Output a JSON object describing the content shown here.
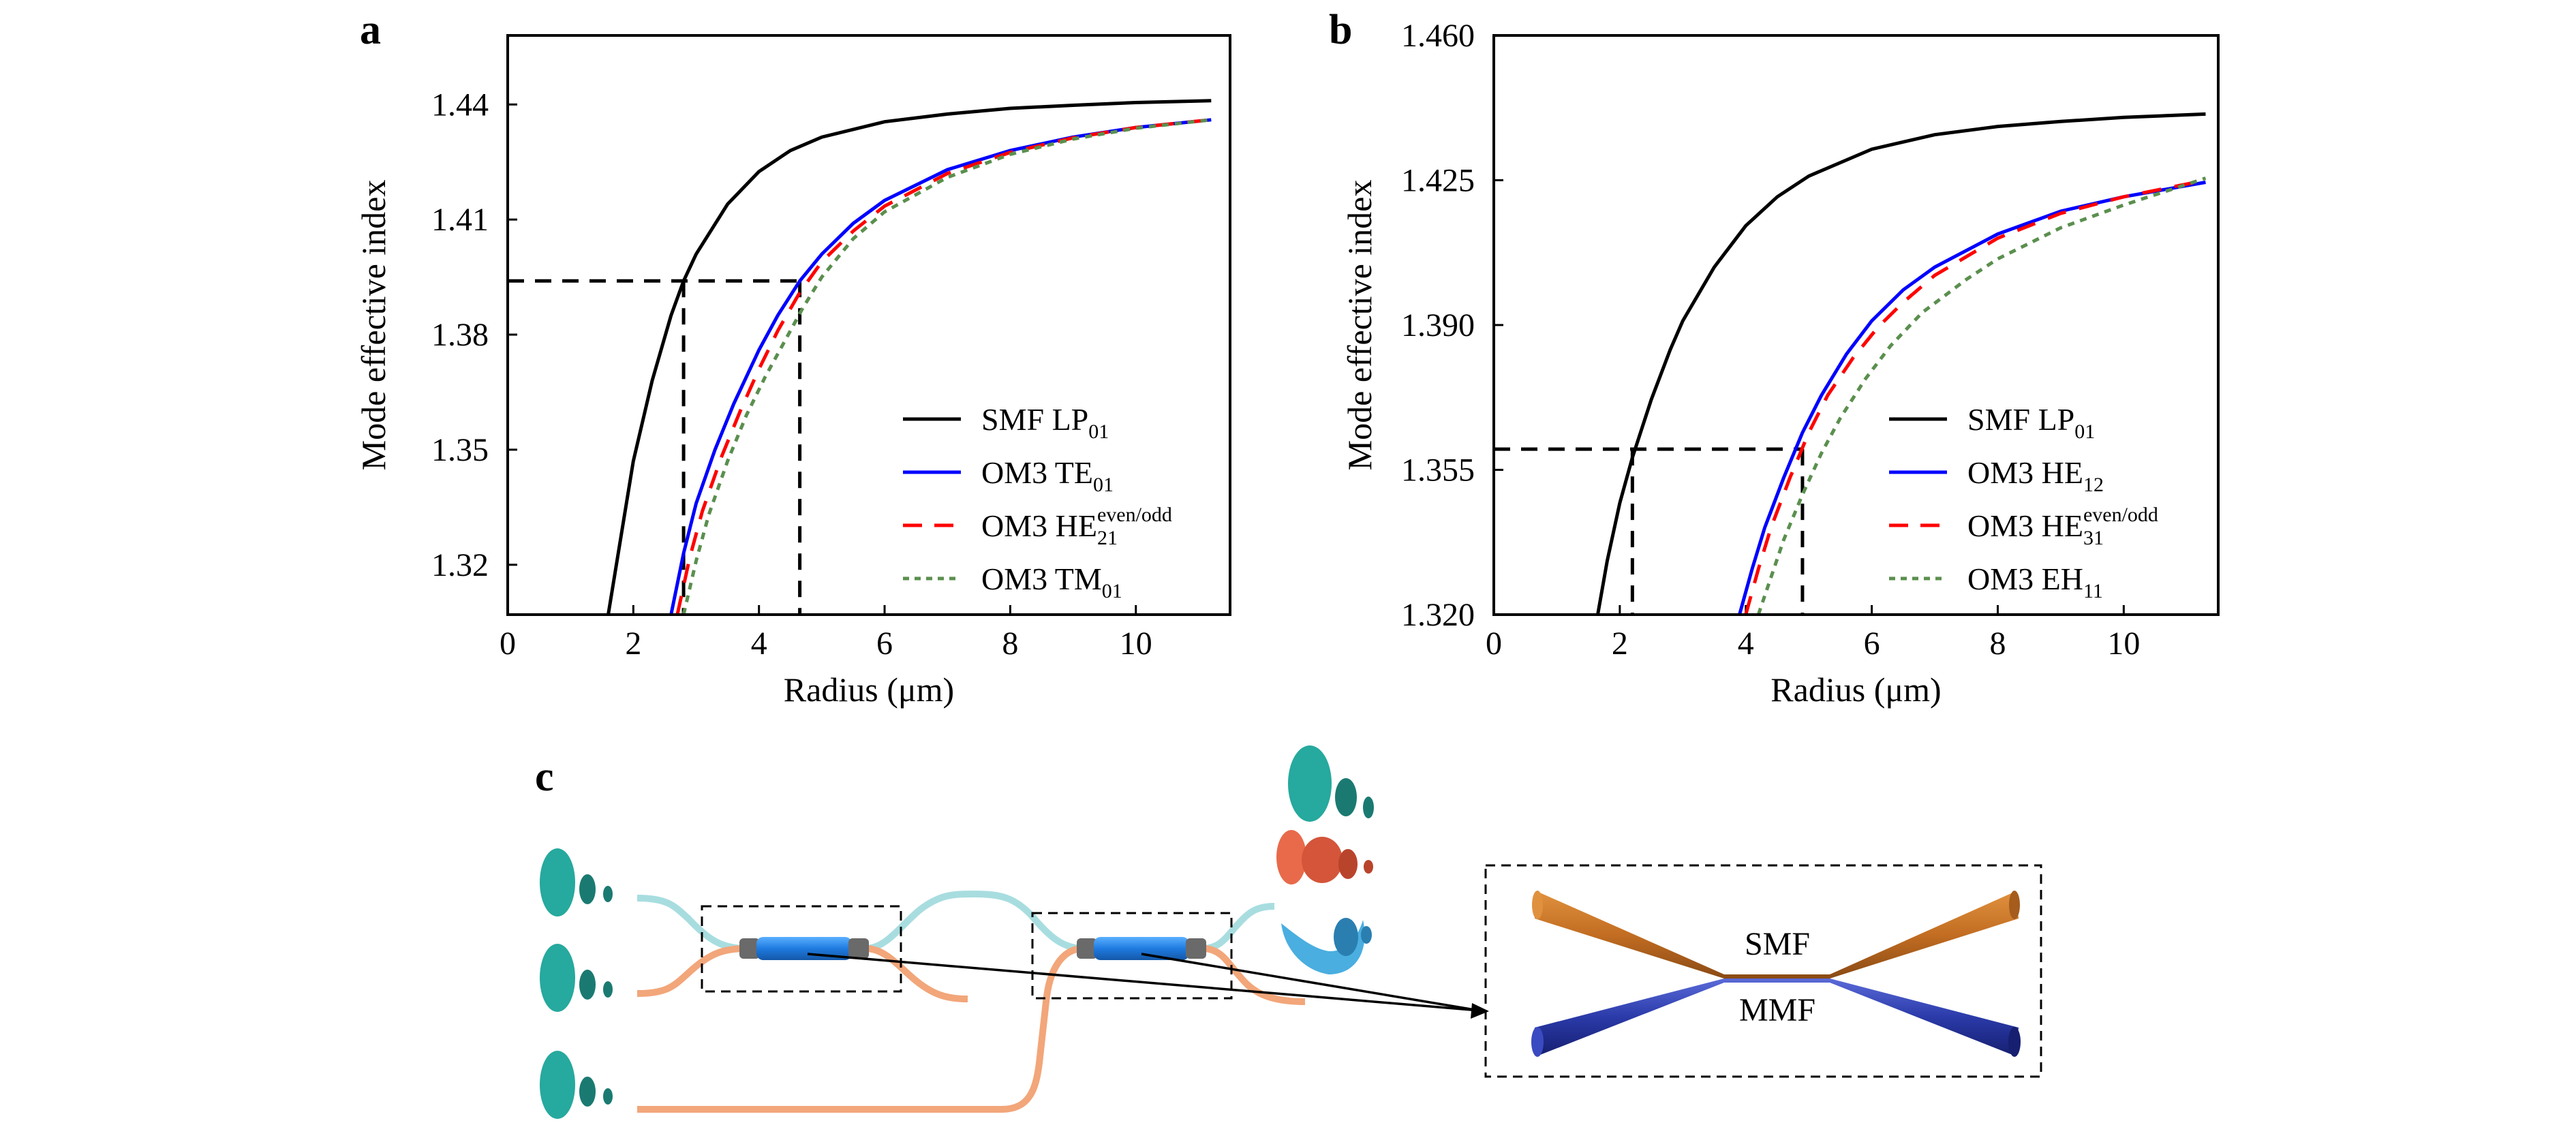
{
  "panels": {
    "a": {
      "letter": "a"
    },
    "b": {
      "letter": "b"
    },
    "c": {
      "letter": "c"
    }
  },
  "chart_data": [
    {
      "type": "line",
      "panel": "a",
      "xlabel": "Radius (μm)",
      "ylabel": "Mode effective index",
      "xlim": [
        0,
        11.5
      ],
      "ylim": [
        1.307,
        1.458
      ],
      "xticks": [
        0,
        2,
        4,
        6,
        8,
        10
      ],
      "xtick_labels": [
        "0",
        "2",
        "4",
        "6",
        "8",
        "10"
      ],
      "yticks": [
        1.32,
        1.35,
        1.38,
        1.41,
        1.44
      ],
      "ytick_labels": [
        "1.32",
        "1.35",
        "1.38",
        "1.41",
        "1.44"
      ],
      "legend_position": "bottom-right",
      "grid": false,
      "series": [
        {
          "legend_main": "SMF LP",
          "legend_sub": "01",
          "legend_sup": "",
          "color": "#000000",
          "dash": "solid",
          "x": [
            1.6,
            1.8,
            2.0,
            2.3,
            2.6,
            2.8,
            3.0,
            3.5,
            4.0,
            4.5,
            5.0,
            6.0,
            7.0,
            8.0,
            9.0,
            10.0,
            11.2
          ],
          "y": [
            1.307,
            1.327,
            1.347,
            1.368,
            1.385,
            1.394,
            1.401,
            1.414,
            1.4225,
            1.428,
            1.4315,
            1.4355,
            1.4375,
            1.439,
            1.4398,
            1.4405,
            1.441
          ]
        },
        {
          "legend_main": "OM3 TE",
          "legend_sub": "01",
          "legend_sup": "",
          "color": "#0000ff",
          "dash": "solid",
          "x": [
            2.6,
            2.8,
            3.0,
            3.3,
            3.6,
            4.0,
            4.3,
            4.65,
            5.0,
            5.5,
            6.0,
            7.0,
            8.0,
            9.0,
            10.0,
            11.2
          ],
          "y": [
            1.307,
            1.323,
            1.336,
            1.35,
            1.362,
            1.376,
            1.385,
            1.394,
            1.401,
            1.409,
            1.415,
            1.423,
            1.428,
            1.4315,
            1.434,
            1.436
          ]
        },
        {
          "legend_main": "OM3 HE",
          "legend_sub": "21",
          "legend_sup": "even/odd",
          "color": "#ff0000",
          "dash": "28 20",
          "x": [
            2.7,
            2.9,
            3.1,
            3.4,
            3.7,
            4.0,
            4.3,
            4.65,
            5.0,
            5.5,
            6.0,
            7.0,
            8.0,
            9.0,
            10.0,
            11.2
          ],
          "y": [
            1.307,
            1.322,
            1.334,
            1.348,
            1.36,
            1.371,
            1.381,
            1.391,
            1.399,
            1.407,
            1.4135,
            1.422,
            1.4275,
            1.4313,
            1.434,
            1.436
          ]
        },
        {
          "legend_main": "OM3 TM",
          "legend_sub": "01",
          "legend_sup": "",
          "color": "#5a8f4e",
          "dash": "10 9",
          "x": [
            2.8,
            3.0,
            3.2,
            3.5,
            3.8,
            4.1,
            4.4,
            4.7,
            5.0,
            5.5,
            6.0,
            7.0,
            8.0,
            9.0,
            10.0,
            11.2
          ],
          "y": [
            1.307,
            1.321,
            1.333,
            1.347,
            1.359,
            1.369,
            1.378,
            1.387,
            1.395,
            1.405,
            1.412,
            1.421,
            1.427,
            1.431,
            1.4338,
            1.436
          ]
        }
      ],
      "guides": {
        "y": 1.394,
        "x": [
          2.8,
          4.65
        ]
      }
    },
    {
      "type": "line",
      "panel": "b",
      "xlabel": "Radius (μm)",
      "ylabel": "Mode effective index",
      "xlim": [
        0,
        11.5
      ],
      "ylim": [
        1.32,
        1.46
      ],
      "xticks": [
        0,
        2,
        4,
        6,
        8,
        10
      ],
      "xtick_labels": [
        "0",
        "2",
        "4",
        "6",
        "8",
        "10"
      ],
      "yticks": [
        1.32,
        1.355,
        1.39,
        1.425,
        1.46
      ],
      "ytick_labels": [
        "1.320",
        "1.355",
        "1.390",
        "1.425",
        "1.460"
      ],
      "legend_position": "bottom-right",
      "grid": false,
      "series": [
        {
          "legend_main": "SMF LP",
          "legend_sub": "01",
          "legend_sup": "",
          "color": "#000000",
          "dash": "solid",
          "x": [
            1.65,
            1.8,
            2.0,
            2.2,
            2.5,
            2.8,
            3.0,
            3.5,
            4.0,
            4.5,
            5.0,
            6.0,
            7.0,
            8.0,
            9.0,
            10.0,
            11.3
          ],
          "y": [
            1.32,
            1.333,
            1.347,
            1.358,
            1.372,
            1.384,
            1.391,
            1.404,
            1.414,
            1.421,
            1.426,
            1.4325,
            1.436,
            1.438,
            1.4392,
            1.4402,
            1.441
          ]
        },
        {
          "legend_main": "OM3 HE",
          "legend_sub": "12",
          "legend_sup": "",
          "color": "#0000ff",
          "dash": "solid",
          "x": [
            3.9,
            4.1,
            4.3,
            4.6,
            4.9,
            5.2,
            5.6,
            6.0,
            6.5,
            7.0,
            8.0,
            9.0,
            10.0,
            11.3
          ],
          "y": [
            1.32,
            1.331,
            1.341,
            1.353,
            1.364,
            1.373,
            1.383,
            1.391,
            1.3985,
            1.404,
            1.412,
            1.4175,
            1.421,
            1.4245
          ]
        },
        {
          "legend_main": "OM3 HE",
          "legend_sub": "31",
          "legend_sup": "even/odd",
          "color": "#ff0000",
          "dash": "28 20",
          "x": [
            4.0,
            4.2,
            4.4,
            4.7,
            5.0,
            5.3,
            5.7,
            6.1,
            6.5,
            7.0,
            8.0,
            9.0,
            10.0,
            11.3
          ],
          "y": [
            1.32,
            1.331,
            1.341,
            1.353,
            1.364,
            1.373,
            1.382,
            1.3895,
            1.3955,
            1.402,
            1.411,
            1.417,
            1.421,
            1.425
          ]
        },
        {
          "legend_main": "OM3 EH",
          "legend_sub": "11",
          "legend_sup": "",
          "color": "#5a8f4e",
          "dash": "10 9",
          "x": [
            4.2,
            4.4,
            4.6,
            4.9,
            5.2,
            5.5,
            5.9,
            6.3,
            6.8,
            7.5,
            8.0,
            9.0,
            10.0,
            11.3
          ],
          "y": [
            1.32,
            1.329,
            1.338,
            1.349,
            1.359,
            1.3675,
            1.377,
            1.385,
            1.393,
            1.401,
            1.406,
            1.4135,
            1.419,
            1.4255
          ]
        }
      ],
      "guides": {
        "y": 1.36,
        "x": [
          2.2,
          4.9
        ]
      }
    }
  ],
  "diagram": {
    "labels": {
      "smf": "SMF",
      "mmf": "MMF"
    },
    "colors": {
      "teal": "#26a99e",
      "dark_teal": "#1a7a72",
      "light_cyan": "#a8dde0",
      "orange": "#f2a67a",
      "blue": "#1f7be0",
      "dark_blue": "#2a3aa8",
      "copper": "#c97a32",
      "salmon": "#e86a4a",
      "sky": "#4aaee0"
    }
  }
}
